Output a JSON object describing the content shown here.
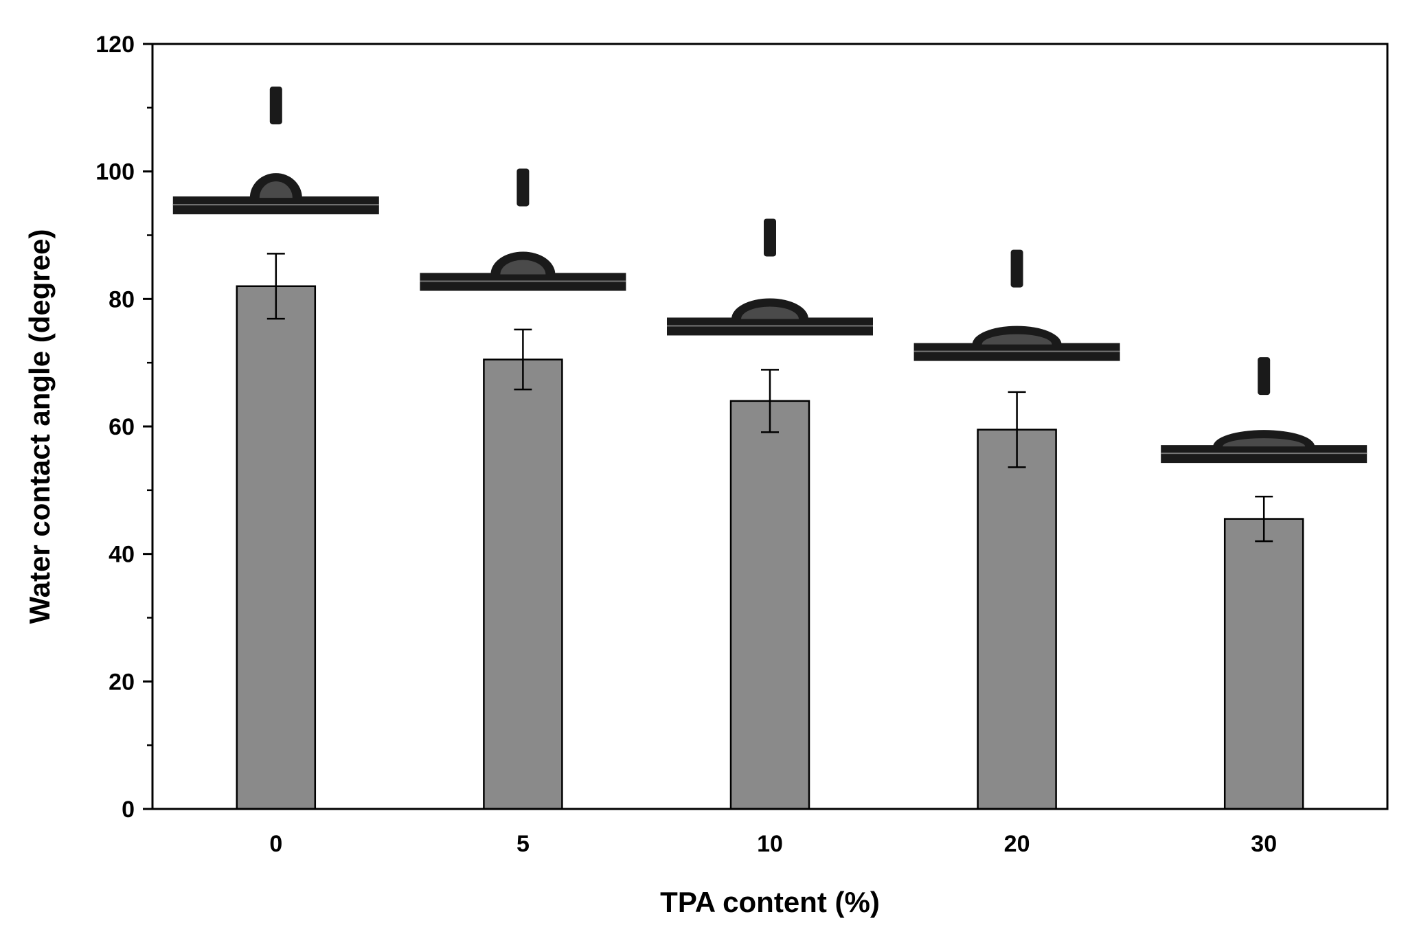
{
  "chart_data": {
    "type": "bar",
    "title": "",
    "xlabel": "TPA content (%)",
    "ylabel": "Water contact angle (degree)",
    "categories": [
      "0",
      "5",
      "10",
      "20",
      "30"
    ],
    "values": [
      82,
      70.5,
      64,
      59.5,
      45.5
    ],
    "errors": [
      5.1,
      4.7,
      4.9,
      5.9,
      3.5
    ],
    "contact_angle_photos": [
      {
        "category": "0",
        "level": 95
      },
      {
        "category": "5",
        "level": 83
      },
      {
        "category": "10",
        "level": 76
      },
      {
        "category": "20",
        "level": 72
      },
      {
        "category": "30",
        "level": 56
      }
    ],
    "ylim": [
      0,
      120
    ],
    "yticks": [
      0,
      20,
      40,
      60,
      80,
      100,
      120
    ],
    "grid": false,
    "colors": {
      "bar": "#8a8a8a",
      "ink": "#000000",
      "droplet": "#1a1a1a"
    }
  }
}
